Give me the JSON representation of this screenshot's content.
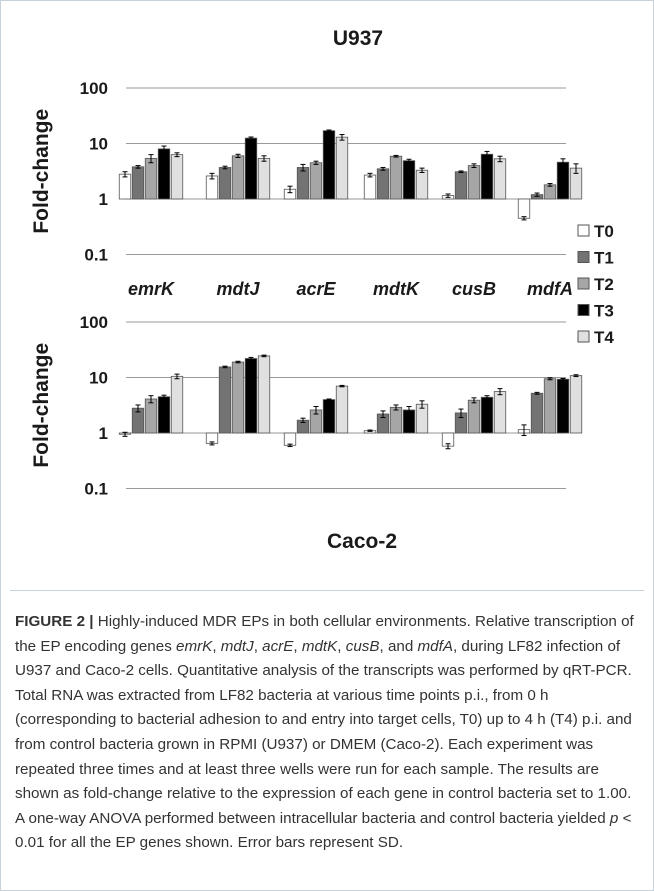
{
  "chart_data": [
    {
      "type": "bar",
      "title": "U937",
      "ylabel": "Fold-change",
      "yscale": "log",
      "ylim": [
        0.1,
        100
      ],
      "yticks": [
        "0.1",
        "1",
        "10",
        "100"
      ],
      "categories": [
        "emrK",
        "mdtJ",
        "acrE",
        "mdtK",
        "cusB",
        "mdfA"
      ],
      "series": [
        {
          "name": "T0",
          "values": [
            2.8,
            2.6,
            1.5,
            2.7,
            1.15,
            0.45
          ],
          "errors": [
            0.3,
            0.3,
            0.2,
            0.2,
            0.08,
            0.03
          ]
        },
        {
          "name": "T1",
          "values": [
            3.8,
            3.7,
            3.7,
            3.5,
            3.1,
            1.2
          ],
          "errors": [
            0.2,
            0.2,
            0.5,
            0.2,
            0.1,
            0.08
          ]
        },
        {
          "name": "T2",
          "values": [
            5.4,
            6.0,
            4.5,
            5.9,
            4.0,
            1.8
          ],
          "errors": [
            0.9,
            0.4,
            0.3,
            0.2,
            0.3,
            0.1
          ]
        },
        {
          "name": "T3",
          "values": [
            8.0,
            12.5,
            17.0,
            4.9,
            6.4,
            4.6
          ],
          "errors": [
            1.0,
            0.6,
            0.5,
            0.3,
            0.8,
            0.7
          ]
        },
        {
          "name": "T4",
          "values": [
            6.3,
            5.4,
            13.0,
            3.3,
            5.3,
            3.6
          ],
          "errors": [
            0.5,
            0.6,
            1.5,
            0.3,
            0.6,
            0.7
          ]
        }
      ]
    },
    {
      "type": "bar",
      "title": "Caco-2",
      "ylabel": "Fold-change",
      "yscale": "log",
      "ylim": [
        0.1,
        100
      ],
      "yticks": [
        "0.1",
        "1",
        "10",
        "100"
      ],
      "categories": [
        "emrK",
        "mdtJ",
        "acrE",
        "mdtK",
        "cusB",
        "mdfA"
      ],
      "series": [
        {
          "name": "T0",
          "values": [
            0.95,
            0.65,
            0.6,
            1.1,
            0.58,
            1.15
          ],
          "errors": [
            0.08,
            0.04,
            0.03,
            0.03,
            0.06,
            0.25
          ]
        },
        {
          "name": "T1",
          "values": [
            2.8,
            15.5,
            1.7,
            2.2,
            2.3,
            5.2
          ],
          "errors": [
            0.4,
            0.5,
            0.15,
            0.3,
            0.4,
            0.2
          ]
        },
        {
          "name": "T2",
          "values": [
            4.1,
            19.0,
            2.6,
            2.9,
            3.9,
            9.5
          ],
          "errors": [
            0.6,
            0.6,
            0.4,
            0.3,
            0.4,
            0.4
          ]
        },
        {
          "name": "T3",
          "values": [
            4.5,
            22.0,
            4.0,
            2.6,
            4.4,
            9.3
          ],
          "errors": [
            0.3,
            1.0,
            0.1,
            0.4,
            0.3,
            0.3
          ]
        },
        {
          "name": "T4",
          "values": [
            10.5,
            24.5,
            7.0,
            3.3,
            5.6,
            10.8
          ],
          "errors": [
            1.0,
            0.8,
            0.2,
            0.5,
            0.7,
            0.4
          ]
        }
      ]
    }
  ],
  "legend": {
    "position": "right",
    "items": [
      {
        "label": "T0",
        "color": "#ffffff"
      },
      {
        "label": "T1",
        "color": "#737373"
      },
      {
        "label": "T2",
        "color": "#a6a6a6"
      },
      {
        "label": "T3",
        "color": "#000000"
      },
      {
        "label": "T4",
        "color": "#e0e0e0"
      }
    ]
  },
  "caption": {
    "label": "FIGURE 2 |",
    "parts": [
      {
        "t": " Highly-induced MDR EPs in both cellular environments. Relative transcription of the EP encoding genes ",
        "i": false
      },
      {
        "t": "emrK",
        "i": true
      },
      {
        "t": ", ",
        "i": false
      },
      {
        "t": "mdtJ",
        "i": true
      },
      {
        "t": ", ",
        "i": false
      },
      {
        "t": "acrE",
        "i": true
      },
      {
        "t": ", ",
        "i": false
      },
      {
        "t": "mdtK",
        "i": true
      },
      {
        "t": ", ",
        "i": false
      },
      {
        "t": "cusB",
        "i": true
      },
      {
        "t": ", and ",
        "i": false
      },
      {
        "t": "mdfA",
        "i": true
      },
      {
        "t": ", during LF82 infection of U937 and Caco-2 cells. Quantitative analysis of the transcripts was performed by qRT-PCR. Total RNA was extracted from LF82 bacteria at various time points p.i., from 0 h (corresponding to bacterial adhesion to and entry into target cells, T0) up to 4 h (T4) p.i. and from control bacteria grown in RPMI (U937) or DMEM (Caco-2). Each experiment was repeated three times and at least three wells were run for each sample. The results are shown as fold-change relative to the expression of each gene in control bacteria set to 1.00. A one-way ANOVA performed between intracellular bacteria and control bacteria yielded ",
        "i": false
      },
      {
        "t": "p",
        "i": true
      },
      {
        "t": " < 0.01 for all the EP genes shown. Error bars represent SD.",
        "i": false
      }
    ]
  }
}
